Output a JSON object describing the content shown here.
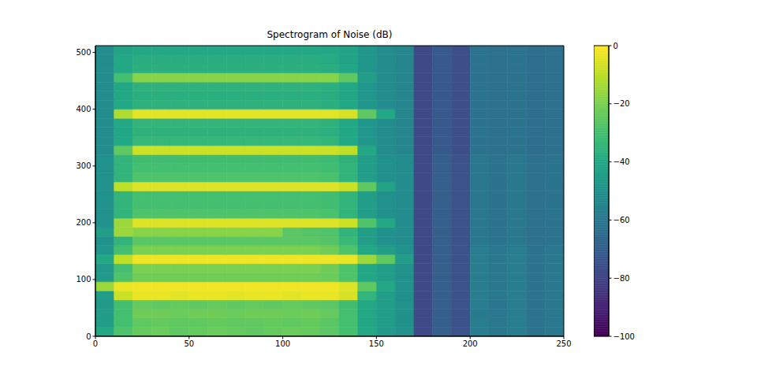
{
  "chart_data": {
    "type": "heatmap",
    "title": "Spectrogram of Noise (dB)",
    "xlim": [
      0,
      250
    ],
    "ylim": [
      0,
      512
    ],
    "xticks": [
      0,
      50,
      100,
      150,
      200,
      250
    ],
    "yticks": [
      0,
      100,
      200,
      300,
      400,
      500
    ],
    "x_edges": [
      0,
      10,
      20,
      30,
      40,
      50,
      60,
      70,
      80,
      90,
      100,
      110,
      120,
      130,
      140,
      150,
      160,
      170,
      180,
      190,
      200,
      210,
      220,
      230,
      240,
      250
    ],
    "y_edges": [
      0,
      16,
      32,
      48,
      64,
      80,
      96,
      112,
      128,
      144,
      160,
      176,
      192,
      208,
      224,
      240,
      256,
      272,
      288,
      304,
      320,
      336,
      352,
      368,
      384,
      400,
      416,
      432,
      448,
      464,
      480,
      496,
      512
    ],
    "cells": [
      [
        -40,
        -28,
        -24,
        -23,
        -25,
        -24,
        -23,
        -24,
        -25,
        -24,
        -23,
        -24,
        -26,
        -30,
        -40,
        -46,
        -50,
        -78,
        -70,
        -75,
        -58,
        -60,
        -58,
        -62,
        -60
      ],
      [
        -45,
        -30,
        -25,
        -24,
        -25,
        -25,
        -24,
        -25,
        -25,
        -24,
        -25,
        -24,
        -26,
        -30,
        -41,
        -45,
        -50,
        -78,
        -70,
        -75,
        -58,
        -60,
        -58,
        -62,
        -60
      ],
      [
        -45,
        -30,
        -22,
        -22,
        -23,
        -22,
        -22,
        -23,
        -22,
        -22,
        -23,
        -22,
        -24,
        -30,
        -40,
        -45,
        -50,
        -78,
        -70,
        -75,
        -59,
        -60,
        -58,
        -62,
        -60
      ],
      [
        -46,
        -30,
        -24,
        -25,
        -24,
        -25,
        -24,
        -25,
        -24,
        -25,
        -24,
        -25,
        -26,
        -31,
        -40,
        -45,
        -50,
        -78,
        -70,
        -75,
        -58,
        -61,
        -58,
        -62,
        -60
      ],
      [
        -45,
        -8,
        -3,
        -3,
        -4,
        -3,
        -3,
        -4,
        -3,
        -3,
        -4,
        -3,
        -3,
        -6,
        -35,
        -45,
        -50,
        -78,
        -70,
        -75,
        -58,
        -60,
        -58,
        -62,
        -60
      ],
      [
        -15,
        -3,
        -2,
        -2,
        -2,
        -2,
        -2,
        -2,
        -2,
        -2,
        -2,
        -2,
        -2,
        -5,
        -25,
        -40,
        -50,
        -78,
        -70,
        -75,
        -58,
        -60,
        -58,
        -62,
        -60
      ],
      [
        -46,
        -28,
        -22,
        -22,
        -22,
        -22,
        -22,
        -22,
        -22,
        -22,
        -22,
        -22,
        -23,
        -28,
        -40,
        -45,
        -50,
        -78,
        -70,
        -75,
        -58,
        -60,
        -58,
        -62,
        -60
      ],
      [
        -47,
        -30,
        -20,
        -20,
        -20,
        -20,
        -20,
        -20,
        -20,
        -20,
        -20,
        -20,
        -22,
        -28,
        -40,
        -45,
        -50,
        -78,
        -70,
        -75,
        -58,
        -60,
        -58,
        -62,
        -60
      ],
      [
        -40,
        -10,
        -2,
        -2,
        -2,
        -2,
        -2,
        -2,
        -2,
        -2,
        -2,
        -2,
        -2,
        -3,
        -15,
        -25,
        -45,
        -78,
        -70,
        -75,
        -58,
        -60,
        -58,
        -62,
        -60
      ],
      [
        -48,
        -30,
        -20,
        -20,
        -20,
        -20,
        -20,
        -20,
        -20,
        -20,
        -20,
        -20,
        -22,
        -28,
        -40,
        -45,
        -50,
        -78,
        -70,
        -75,
        -58,
        -60,
        -58,
        -62,
        -60
      ],
      [
        -50,
        -35,
        -26,
        -26,
        -26,
        -26,
        -26,
        -26,
        -26,
        -26,
        -26,
        -26,
        -27,
        -33,
        -45,
        -50,
        -52,
        -78,
        -70,
        -75,
        -60,
        -62,
        -60,
        -63,
        -62
      ],
      [
        -45,
        -15,
        -18,
        -18,
        -18,
        -18,
        -18,
        -18,
        -18,
        -18,
        -26,
        -27,
        -28,
        -35,
        -45,
        -50,
        -52,
        -78,
        -70,
        -75,
        -60,
        -62,
        -60,
        -63,
        -62
      ],
      [
        -50,
        -15,
        -5,
        -5,
        -5,
        -5,
        -5,
        -5,
        -5,
        -5,
        -5,
        -5,
        -5,
        -8,
        -28,
        -40,
        -52,
        -78,
        -70,
        -75,
        -60,
        -62,
        -60,
        -63,
        -62
      ],
      [
        -50,
        -35,
        -28,
        -28,
        -28,
        -28,
        -28,
        -28,
        -28,
        -28,
        -28,
        -28,
        -29,
        -35,
        -45,
        -50,
        -52,
        -78,
        -70,
        -75,
        -60,
        -62,
        -60,
        -63,
        -62
      ],
      [
        -50,
        -35,
        -30,
        -30,
        -30,
        -30,
        -30,
        -30,
        -30,
        -30,
        -30,
        -30,
        -31,
        -35,
        -45,
        -50,
        -52,
        -78,
        -70,
        -75,
        -60,
        -62,
        -60,
        -63,
        -62
      ],
      [
        -50,
        -35,
        -30,
        -30,
        -30,
        -30,
        -30,
        -30,
        -30,
        -30,
        -30,
        -30,
        -31,
        -35,
        -45,
        -50,
        -52,
        -78,
        -70,
        -75,
        -60,
        -62,
        -60,
        -63,
        -62
      ],
      [
        -50,
        -10,
        -5,
        -5,
        -5,
        -5,
        -5,
        -5,
        -5,
        -5,
        -5,
        -5,
        -5,
        -8,
        -25,
        -42,
        -52,
        -78,
        -70,
        -75,
        -60,
        -62,
        -60,
        -63,
        -62
      ],
      [
        -50,
        -35,
        -28,
        -28,
        -28,
        -28,
        -28,
        -28,
        -28,
        -28,
        -28,
        -28,
        -29,
        -35,
        -45,
        -50,
        -52,
        -78,
        -70,
        -75,
        -60,
        -62,
        -60,
        -63,
        -62
      ],
      [
        -50,
        -35,
        -30,
        -30,
        -30,
        -30,
        -30,
        -30,
        -30,
        -30,
        -30,
        -30,
        -31,
        -35,
        -45,
        -50,
        -52,
        -78,
        -70,
        -75,
        -60,
        -62,
        -60,
        -63,
        -62
      ],
      [
        -50,
        -35,
        -31,
        -31,
        -31,
        -31,
        -31,
        -31,
        -31,
        -31,
        -31,
        -31,
        -32,
        -36,
        -45,
        -50,
        -52,
        -78,
        -70,
        -75,
        -60,
        -62,
        -60,
        -63,
        -62
      ],
      [
        -52,
        -25,
        -8,
        -8,
        -8,
        -8,
        -8,
        -8,
        -8,
        -8,
        -8,
        -8,
        -8,
        -10,
        -40,
        -52,
        -54,
        -78,
        -72,
        -76,
        -62,
        -63,
        -62,
        -64,
        -63
      ],
      [
        -52,
        -40,
        -34,
        -34,
        -34,
        -34,
        -34,
        -34,
        -34,
        -34,
        -34,
        -34,
        -35,
        -40,
        -48,
        -52,
        -54,
        -78,
        -72,
        -76,
        -62,
        -63,
        -62,
        -64,
        -63
      ],
      [
        -52,
        -40,
        -36,
        -36,
        -36,
        -36,
        -36,
        -36,
        -36,
        -36,
        -36,
        -36,
        -37,
        -40,
        -48,
        -52,
        -54,
        -78,
        -72,
        -76,
        -62,
        -63,
        -62,
        -64,
        -63
      ],
      [
        -52,
        -40,
        -35,
        -35,
        -35,
        -35,
        -35,
        -35,
        -35,
        -35,
        -35,
        -35,
        -36,
        -40,
        -48,
        -52,
        -54,
        -78,
        -72,
        -76,
        -62,
        -63,
        -62,
        -64,
        -63
      ],
      [
        -52,
        -12,
        -4,
        -4,
        -4,
        -4,
        -4,
        -4,
        -4,
        -4,
        -4,
        -4,
        -4,
        -6,
        -25,
        -40,
        -54,
        -78,
        -72,
        -76,
        -62,
        -63,
        -62,
        -64,
        -63
      ],
      [
        -52,
        -40,
        -36,
        -36,
        -36,
        -36,
        -36,
        -36,
        -36,
        -36,
        -36,
        -36,
        -37,
        -40,
        -48,
        -52,
        -54,
        -78,
        -72,
        -76,
        -62,
        -63,
        -62,
        -64,
        -63
      ],
      [
        -52,
        -40,
        -37,
        -37,
        -37,
        -37,
        -37,
        -37,
        -37,
        -37,
        -37,
        -37,
        -38,
        -41,
        -48,
        -52,
        -54,
        -78,
        -72,
        -76,
        -62,
        -63,
        -62,
        -64,
        -63
      ],
      [
        -52,
        -40,
        -36,
        -36,
        -36,
        -36,
        -36,
        -36,
        -36,
        -36,
        -36,
        -36,
        -37,
        -40,
        -48,
        -52,
        -54,
        -78,
        -72,
        -76,
        -62,
        -63,
        -62,
        -64,
        -63
      ],
      [
        -52,
        -30,
        -18,
        -18,
        -18,
        -18,
        -18,
        -18,
        -18,
        -18,
        -18,
        -18,
        -18,
        -25,
        -45,
        -52,
        -54,
        -78,
        -72,
        -76,
        -62,
        -63,
        -62,
        -64,
        -63
      ],
      [
        -52,
        -40,
        -37,
        -37,
        -37,
        -37,
        -37,
        -37,
        -37,
        -37,
        -37,
        -37,
        -38,
        -41,
        -48,
        -52,
        -54,
        -78,
        -72,
        -76,
        -62,
        -63,
        -62,
        -64,
        -63
      ],
      [
        -52,
        -40,
        -38,
        -38,
        -38,
        -38,
        -38,
        -38,
        -38,
        -38,
        -38,
        -38,
        -39,
        -42,
        -48,
        -52,
        -54,
        -78,
        -72,
        -76,
        -62,
        -63,
        -62,
        -64,
        -63
      ],
      [
        -52,
        -42,
        -40,
        -40,
        -40,
        -40,
        -40,
        -40,
        -40,
        -40,
        -40,
        -40,
        -41,
        -42,
        -48,
        -52,
        -54,
        -78,
        -72,
        -76,
        -62,
        -63,
        -62,
        -64,
        -63
      ]
    ],
    "colorbar": {
      "range": [
        -100,
        0
      ],
      "ticks": [
        0,
        {
          "value": -20,
          "label": "−20"
        },
        {
          "value": -40,
          "label": "−40"
        },
        {
          "value": -60,
          "label": "−60"
        },
        {
          "value": -80,
          "label": "−80"
        },
        {
          "value": -100,
          "label": "−100"
        }
      ]
    }
  }
}
